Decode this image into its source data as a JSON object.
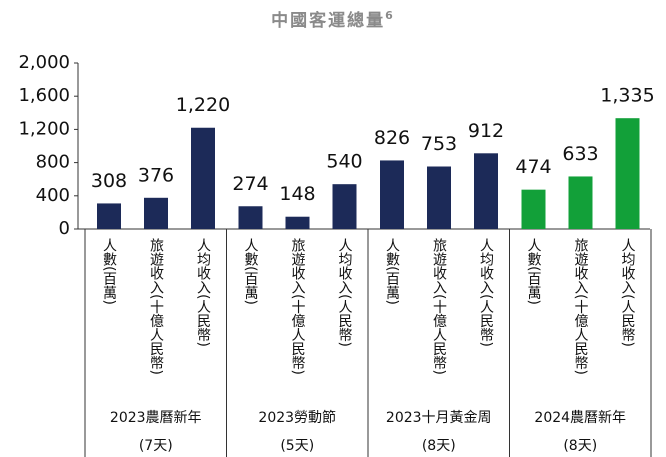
{
  "chart_data": {
    "type": "bar",
    "title": "中國客運總量",
    "title_note": "6",
    "categories": [
      "人數(百萬)",
      "旅遊收入(十億人民幣)",
      "人均收入(人民幣)",
      "人數(百萬)",
      "旅遊收入(十億人民幣)",
      "人均收入(人民幣)",
      "人數(百萬)",
      "旅遊收入(十億人民幣)",
      "人均收入(人民幣)",
      "人數(百萬)",
      "旅遊收入(十億人民幣)",
      "人均收入(人民幣)"
    ],
    "values": [
      308,
      376,
      1220,
      274,
      148,
      540,
      826,
      753,
      912,
      474,
      633,
      1335
    ],
    "value_labels": [
      "308",
      "376",
      "1,220",
      "274",
      "148",
      "540",
      "826",
      "753",
      "912",
      "474",
      "633",
      "1,335"
    ],
    "groups": [
      {
        "label": "2023農曆新年",
        "sublabel": "(7天)",
        "size": 3,
        "color": "#1c2a58"
      },
      {
        "label": "2023勞動節",
        "sublabel": "(5天)",
        "size": 3,
        "color": "#1c2a58"
      },
      {
        "label": "2023十月黃金周",
        "sublabel": "(8天)",
        "size": 3,
        "color": "#1c2a58"
      },
      {
        "label": "2024農曆新年",
        "sublabel": "(8天)",
        "size": 3,
        "color": "#12a039"
      }
    ],
    "ylim": [
      0,
      2000
    ],
    "yticks": [
      0,
      400,
      800,
      {
        "value": 1200,
        "label": "1,200"
      },
      {
        "value": 1600,
        "label": "1,600"
      },
      {
        "value": 2000,
        "label": "2,000"
      }
    ]
  }
}
